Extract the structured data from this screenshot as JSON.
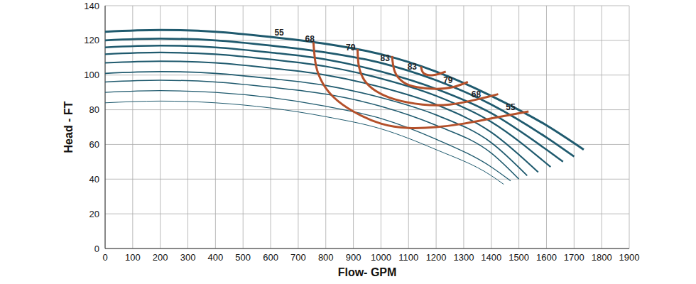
{
  "chart_data": {
    "type": "line",
    "x_label": "Flow- GPM",
    "y_label": "Head - FT",
    "xlim": [
      0,
      1900
    ],
    "xticks": [
      0,
      100,
      200,
      300,
      400,
      500,
      600,
      700,
      800,
      900,
      1000,
      1100,
      1200,
      1300,
      1400,
      1500,
      1600,
      1700,
      1800,
      1900
    ],
    "ylim": [
      0,
      140
    ],
    "yticks": [
      0,
      20,
      40,
      60,
      80,
      100,
      120,
      140
    ],
    "grid": true,
    "series": [
      {
        "type": "line",
        "color": "#1f5a6e",
        "x": [
          0,
          200,
          400,
          600,
          800,
          1000,
          1200,
          1400,
          1600,
          1735
        ],
        "values": [
          125,
          126,
          125,
          122,
          118,
          112,
          102,
          88,
          71,
          57
        ]
      },
      {
        "type": "line",
        "color": "#1f5a6e",
        "x": [
          0,
          200,
          400,
          600,
          800,
          1000,
          1200,
          1400,
          1600,
          1700
        ],
        "values": [
          120,
          121,
          120,
          117,
          113,
          107,
          97,
          83,
          64,
          53
        ]
      },
      {
        "type": "line",
        "color": "#1f5a6e",
        "x": [
          0,
          200,
          400,
          600,
          800,
          1000,
          1200,
          1400,
          1600,
          1660
        ],
        "values": [
          116,
          117,
          116,
          113,
          109,
          102,
          92,
          78,
          57,
          50
        ]
      },
      {
        "type": "line",
        "color": "#1f5a6e",
        "x": [
          0,
          200,
          400,
          600,
          800,
          1000,
          1200,
          1400,
          1615
        ],
        "values": [
          112,
          113,
          112,
          109,
          105,
          98,
          88,
          73,
          47
        ]
      },
      {
        "type": "line",
        "color": "#1f5a6e",
        "x": [
          0,
          200,
          400,
          600,
          800,
          1000,
          1200,
          1400,
          1570
        ],
        "values": [
          107,
          108,
          107,
          104,
          100,
          93,
          83,
          67,
          44
        ]
      },
      {
        "type": "line",
        "color": "#1f5a6e",
        "x": [
          0,
          200,
          400,
          600,
          800,
          1000,
          1200,
          1400,
          1530
        ],
        "values": [
          101,
          102,
          101,
          98,
          94,
          87,
          77,
          61,
          42
        ]
      },
      {
        "type": "line",
        "color": "#1f5a6e",
        "x": [
          0,
          200,
          400,
          600,
          800,
          1000,
          1200,
          1400,
          1500
        ],
        "values": [
          96,
          97,
          96,
          93,
          89,
          82,
          71,
          55,
          40
        ]
      },
      {
        "type": "line",
        "color": "#1f5a6e",
        "x": [
          0,
          200,
          400,
          600,
          800,
          1000,
          1200,
          1400,
          1470
        ],
        "values": [
          90,
          91,
          90,
          87,
          82,
          75,
          63,
          47,
          39
        ]
      },
      {
        "type": "line",
        "color": "#1f5a6e",
        "x": [
          0,
          200,
          400,
          600,
          800,
          1000,
          1200,
          1400,
          1445
        ],
        "values": [
          84,
          85,
          84,
          81,
          76,
          69,
          57,
          42,
          37
        ]
      },
      {
        "type": "line",
        "color": "#b4502a",
        "x": [
          755,
          765,
          790,
          830,
          900,
          1000,
          1100,
          1200,
          1300,
          1400,
          1535
        ],
        "values": [
          119,
          105,
          95,
          87,
          79,
          72,
          69.5,
          70,
          72,
          75,
          79
        ]
      },
      {
        "type": "line",
        "color": "#b4502a",
        "x": [
          915,
          920,
          940,
          980,
          1050,
          1150,
          1250,
          1350,
          1425
        ],
        "values": [
          115,
          105,
          97,
          91,
          86,
          83,
          83,
          86,
          89
        ]
      },
      {
        "type": "line",
        "color": "#b4502a",
        "x": [
          1040,
          1050,
          1080,
          1130,
          1200,
          1260,
          1315
        ],
        "values": [
          111,
          102,
          96,
          93,
          92,
          93,
          96
        ]
      },
      {
        "type": "line",
        "color": "#b4502a",
        "x": [
          1145,
          1155,
          1190,
          1235
        ],
        "values": [
          105,
          101,
          100,
          102
        ]
      }
    ],
    "annotations": [
      {
        "text": "55",
        "x": 631,
        "y": 124.5
      },
      {
        "text": "68",
        "x": 742,
        "y": 121
      },
      {
        "text": "79",
        "x": 890,
        "y": 116
      },
      {
        "text": "83",
        "x": 1015,
        "y": 110
      },
      {
        "text": "83",
        "x": 1113,
        "y": 105
      },
      {
        "text": "79",
        "x": 1243,
        "y": 97
      },
      {
        "text": "68",
        "x": 1345,
        "y": 89
      },
      {
        "text": "55",
        "x": 1470,
        "y": 81.5
      }
    ]
  }
}
